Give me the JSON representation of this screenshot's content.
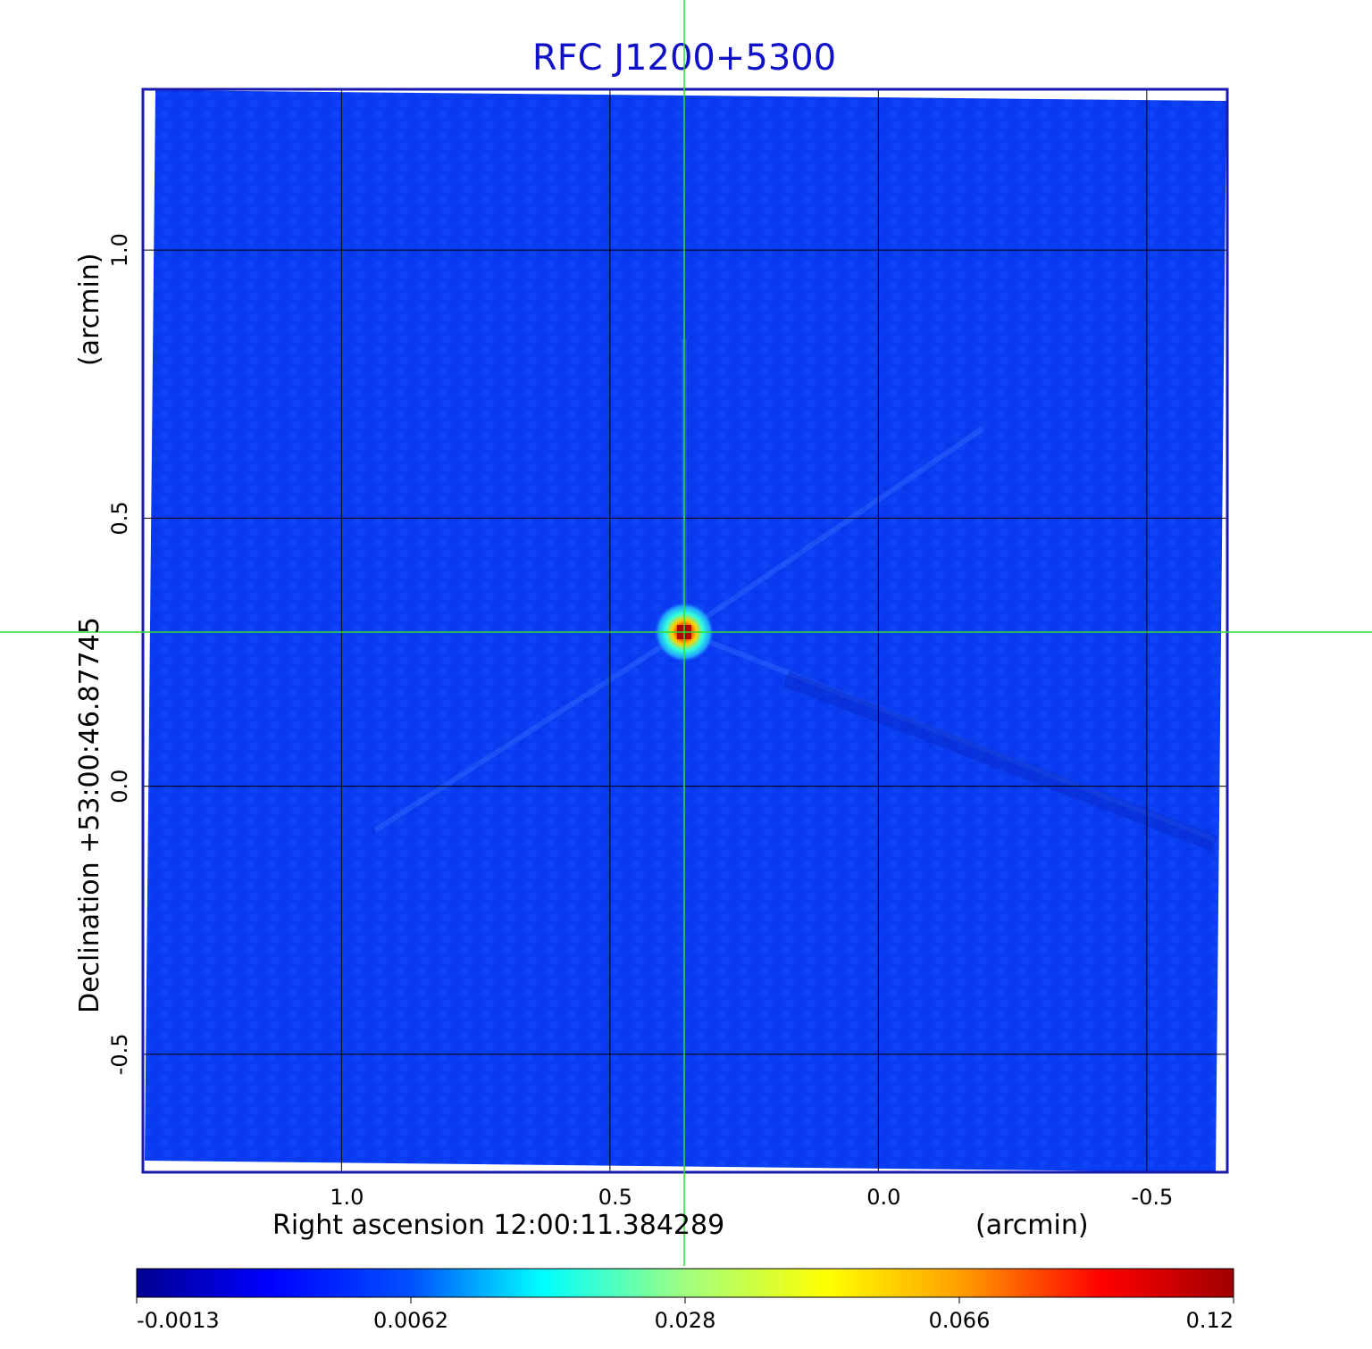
{
  "chart_data": {
    "type": "heatmap",
    "title": "RFC J1200+5300",
    "xlabel": "Right ascension  12:00:11.384289",
    "xunit": "(arcmin)",
    "ylabel": "Declination  +53:00:46.87745",
    "yunit": "(arcmin)",
    "x_ticks": [
      "1.0",
      "0.5",
      "0.0",
      "-0.5"
    ],
    "y_ticks": [
      "1.0",
      "0.5",
      "0.0",
      "-0.5"
    ],
    "x_tick_values": [
      1.0,
      0.5,
      0.0,
      -0.5
    ],
    "y_tick_values": [
      1.0,
      0.5,
      0.0,
      -0.5
    ],
    "xlim": [
      1.37,
      -0.65
    ],
    "ylim": [
      -0.72,
      1.3
    ],
    "grid": true,
    "crosshair": {
      "x": 0.36,
      "y": 0.29
    },
    "peak": {
      "x": 0.36,
      "y": 0.29,
      "value": 0.12
    },
    "colorbar": {
      "ticks": [
        "-0.0013",
        "0.0062",
        "0.028",
        "0.066",
        "0.12"
      ],
      "colormap": "jet",
      "stops": [
        "#00008f",
        "#0000ff",
        "#00ffff",
        "#ffff00",
        "#ff0000",
        "#800000"
      ]
    },
    "colors": {
      "title": "#1010c8",
      "frame": "#1a1ab0",
      "background_field": "#0a3cf2",
      "crosshair": "#33dd33",
      "grid": "#000000"
    }
  }
}
